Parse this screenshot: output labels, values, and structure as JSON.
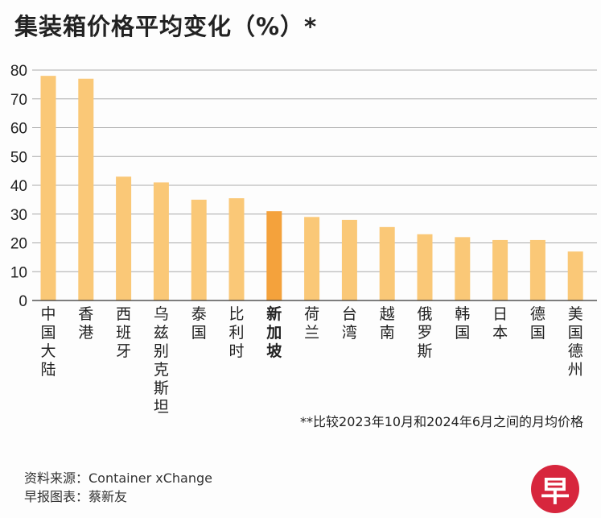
{
  "chart_data": {
    "type": "bar",
    "title": "集装箱价格平均变化（%）*",
    "categories": [
      "中国大陆",
      "香港",
      "西班牙",
      "乌兹别克斯坦",
      "泰国",
      "比利时",
      "新加坡",
      "荷兰",
      "台湾",
      "越南",
      "俄罗斯",
      "韩国",
      "日本",
      "德国",
      "美国德州"
    ],
    "values": [
      78,
      77,
      43,
      41,
      35,
      35.5,
      31,
      29,
      28,
      25.5,
      23,
      22,
      21,
      21,
      17
    ],
    "highlight": "新加坡",
    "ylim": [
      0,
      80
    ],
    "yticks": [
      0,
      10,
      20,
      30,
      40,
      50,
      60,
      70,
      80
    ],
    "grid": true,
    "colors": {
      "bar": "#fac877",
      "highlight": "#f4a23c",
      "grid": "#aaaaaa"
    }
  },
  "footnote": "**比较2023年10月和2024年6月之间的月均价格",
  "source": "资料来源：Container xChange",
  "credit": "早报图表：蔡新友",
  "logo": "早"
}
